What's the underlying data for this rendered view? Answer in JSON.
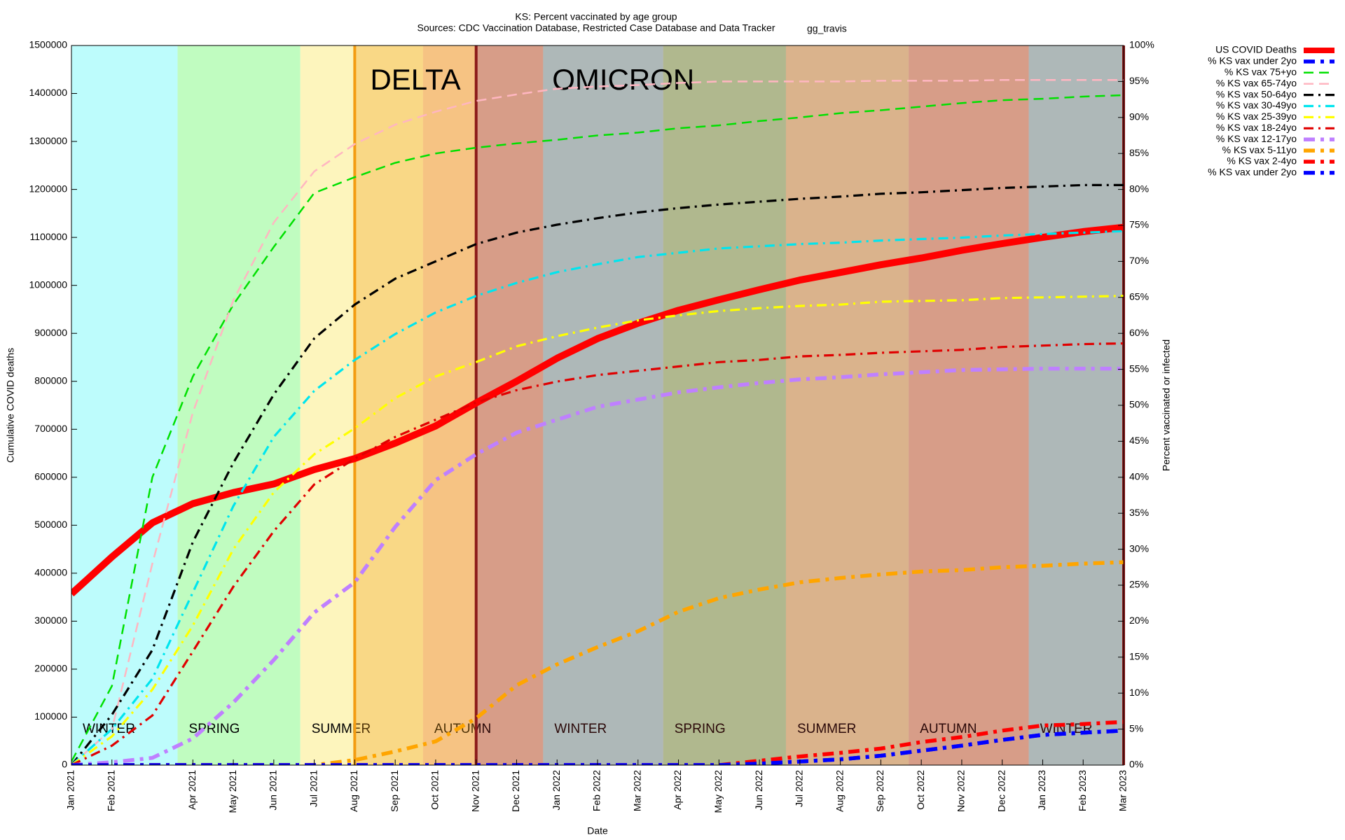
{
  "chart_data": {
    "type": "line",
    "title": "KS: Percent vaccinated by age group",
    "subtitle": "Sources: CDC Vaccination Database, Restricted Case Database and Data Tracker",
    "credit": "gg_travis",
    "x_label": "Date",
    "y_label": "Cumulative COVID deaths",
    "y2_label": "Percent vaccinated or infected",
    "xlim": [
      "2021-01",
      "2023-03"
    ],
    "xticks": [
      {
        "value": "2021-01",
        "label": "Jan 2021"
      },
      {
        "value": "2021-02",
        "label": "Feb 2021"
      },
      {
        "value": "2021-04",
        "label": "Apr 2021"
      },
      {
        "value": "2021-05",
        "label": "May 2021"
      },
      {
        "value": "2021-06",
        "label": "Jun 2021"
      },
      {
        "value": "2021-07",
        "label": "Jul 2021"
      },
      {
        "value": "2021-08",
        "label": "Aug 2021"
      },
      {
        "value": "2021-09",
        "label": "Sep 2021"
      },
      {
        "value": "2021-10",
        "label": "Oct 2021"
      },
      {
        "value": "2021-11",
        "label": "Nov 2021"
      },
      {
        "value": "2021-12",
        "label": "Dec 2021"
      },
      {
        "value": "2022-01",
        "label": "Jan 2022"
      },
      {
        "value": "2022-02",
        "label": "Feb 2022"
      },
      {
        "value": "2022-03",
        "label": "Mar 2022"
      },
      {
        "value": "2022-04",
        "label": "Apr 2022"
      },
      {
        "value": "2022-05",
        "label": "May 2022"
      },
      {
        "value": "2022-06",
        "label": "Jun 2022"
      },
      {
        "value": "2022-07",
        "label": "Jul 2022"
      },
      {
        "value": "2022-08",
        "label": "Aug 2022"
      },
      {
        "value": "2022-09",
        "label": "Sep 2022"
      },
      {
        "value": "2022-10",
        "label": "Oct 2022"
      },
      {
        "value": "2022-11",
        "label": "Nov 2022"
      },
      {
        "value": "2022-12",
        "label": "Dec 2022"
      },
      {
        "value": "2023-01",
        "label": "Jan 2023"
      },
      {
        "value": "2023-02",
        "label": "Feb 2023"
      },
      {
        "value": "2023-03",
        "label": "Mar 2023"
      }
    ],
    "ylim": [
      0,
      1500000
    ],
    "yticks": [
      0,
      100000,
      200000,
      300000,
      400000,
      500000,
      600000,
      700000,
      800000,
      900000,
      1000000,
      1100000,
      1200000,
      1300000,
      1400000,
      1500000
    ],
    "y2lim": [
      0,
      100
    ],
    "y2ticks": [
      {
        "value": 0,
        "label": "0%"
      },
      {
        "value": 5,
        "label": "5%"
      },
      {
        "value": 10,
        "label": "10%"
      },
      {
        "value": 15,
        "label": "15%"
      },
      {
        "value": 20,
        "label": "20%"
      },
      {
        "value": 25,
        "label": "25%"
      },
      {
        "value": 30,
        "label": "30%"
      },
      {
        "value": 35,
        "label": "35%"
      },
      {
        "value": 40,
        "label": "40%"
      },
      {
        "value": 45,
        "label": "45%"
      },
      {
        "value": 50,
        "label": "50%"
      },
      {
        "value": 55,
        "label": "55%"
      },
      {
        "value": 60,
        "label": "60%"
      },
      {
        "value": 65,
        "label": "65%"
      },
      {
        "value": 70,
        "label": "70%"
      },
      {
        "value": 75,
        "label": "75%"
      },
      {
        "value": 80,
        "label": "80%"
      },
      {
        "value": 85,
        "label": "85%"
      },
      {
        "value": 90,
        "label": "90%"
      },
      {
        "value": 95,
        "label": "95%"
      },
      {
        "value": 100,
        "label": "100%"
      }
    ],
    "grid": false,
    "legend": "outside-right-top",
    "seasons": [
      {
        "label": "WINTER",
        "start": "2021-01",
        "end": "2021-03-20",
        "color": "#bdfcfc"
      },
      {
        "label": "SPRING",
        "start": "2021-03-20",
        "end": "2021-06-21",
        "color": "#c0fcc0"
      },
      {
        "label": "SUMMER",
        "start": "2021-06-21",
        "end": "2021-09-22",
        "color": "#fdf5bd"
      },
      {
        "label": "AUTUMN",
        "start": "2021-09-22",
        "end": "2021-12-21",
        "color": "#f8d6b8"
      },
      {
        "label": "WINTER",
        "start": "2021-12-21",
        "end": "2022-03-20",
        "color": "#bdfcfc"
      },
      {
        "label": "SPRING",
        "start": "2022-03-20",
        "end": "2022-06-21",
        "color": "#c0fcc0"
      },
      {
        "label": "SUMMER",
        "start": "2022-06-21",
        "end": "2022-09-22",
        "color": "#fdf5bd"
      },
      {
        "label": "AUTUMN",
        "start": "2022-09-22",
        "end": "2022-12-21",
        "color": "#f8d6b8"
      },
      {
        "label": "WINTER",
        "start": "2022-12-21",
        "end": "2023-03",
        "color": "#bdfcfc"
      }
    ],
    "periods": [
      {
        "label": "DELTA",
        "start": "2021-08",
        "end": "2021-11",
        "color": "#f39c12"
      },
      {
        "label": "OMICRON",
        "start": "2021-11",
        "end": "2023-03",
        "color": "#8b1a1a"
      }
    ],
    "x": [
      "2021-01",
      "2021-02",
      "2021-03",
      "2021-04",
      "2021-05",
      "2021-06",
      "2021-07",
      "2021-08",
      "2021-09",
      "2021-10",
      "2021-11",
      "2021-12",
      "2022-01",
      "2022-02",
      "2022-03",
      "2022-04",
      "2022-05",
      "2022-06",
      "2022-07",
      "2022-08",
      "2022-09",
      "2022-10",
      "2022-11",
      "2022-12",
      "2023-01",
      "2023-02",
      "2023-03"
    ],
    "series": [
      {
        "name": "US COVID Deaths",
        "color": "#ff0000",
        "style": "solid-thick",
        "axis": "y",
        "values": [
          357000,
          434000,
          505000,
          545000,
          568000,
          586000,
          616000,
          639000,
          671000,
          707000,
          755000,
          800000,
          848000,
          889000,
          921000,
          948000,
          970000,
          991000,
          1011000,
          1027000,
          1043000,
          1057000,
          1073000,
          1087000,
          1100000,
          1112000,
          1121000
        ]
      },
      {
        "name": "% KS vax under 2yo",
        "color": "#0000ff",
        "style": "dash-dot-thick",
        "axis": "y2",
        "values": [
          0,
          0,
          0,
          0,
          0,
          0,
          0,
          0,
          0,
          0,
          0,
          0,
          0,
          0,
          0,
          0,
          0,
          0.2,
          0.5,
          0.8,
          1.3,
          2,
          2.7,
          3.5,
          4.2,
          4.5,
          4.8
        ]
      },
      {
        "name": "% KS vax 75+yo",
        "color": "#00e000",
        "style": "dashed",
        "axis": "y2",
        "values": [
          0.5,
          11,
          40,
          54,
          64,
          72,
          79.5,
          81.7,
          83.7,
          85,
          85.8,
          86.4,
          86.9,
          87.5,
          87.9,
          88.5,
          88.9,
          89.5,
          90,
          90.6,
          91,
          91.5,
          92,
          92.4,
          92.6,
          92.9,
          93.1
        ]
      },
      {
        "name": "% KS vax 65-74yo",
        "color": "#ffb6c1",
        "style": "dashed",
        "axis": "y2",
        "values": [
          0,
          5,
          28,
          49,
          64.6,
          75.4,
          82.5,
          86.3,
          89,
          90.8,
          92.3,
          93.2,
          94,
          94.3,
          94.5,
          94.8,
          95,
          95,
          95,
          95,
          95.1,
          95.1,
          95.1,
          95.2,
          95.2,
          95.2,
          95.2
        ]
      },
      {
        "name": "% KS vax 50-64yo",
        "color": "#000000",
        "style": "dash-dot",
        "axis": "y2",
        "values": [
          0,
          7,
          16,
          31,
          42,
          51.5,
          59.3,
          64,
          67.6,
          70,
          72.4,
          74,
          75.1,
          76,
          76.8,
          77.4,
          77.9,
          78.3,
          78.7,
          79,
          79.4,
          79.6,
          79.9,
          80.2,
          80.4,
          80.6,
          80.6
        ]
      },
      {
        "name": "% KS vax 30-49yo",
        "color": "#00e5ee",
        "style": "dash-dot",
        "axis": "y2",
        "values": [
          0,
          5,
          12,
          24,
          36,
          45.6,
          52,
          56.3,
          59.9,
          62.9,
          65.2,
          67,
          68.5,
          69.6,
          70.6,
          71.2,
          71.8,
          72.1,
          72.4,
          72.6,
          72.9,
          73.1,
          73.3,
          73.6,
          73.8,
          74,
          74.2
        ]
      },
      {
        "name": "% KS vax 25-39yo",
        "color": "#ffff00",
        "style": "dash-dot",
        "axis": "y2",
        "values": [
          0,
          4,
          10.5,
          19.4,
          30,
          37.9,
          43.2,
          46.8,
          51,
          54,
          56,
          58.2,
          59.6,
          60.8,
          61.8,
          62.5,
          63.1,
          63.5,
          63.8,
          64,
          64.4,
          64.5,
          64.6,
          64.9,
          65,
          65.1,
          65.2
        ]
      },
      {
        "name": "% KS vax 18-24yo",
        "color": "#e00000",
        "style": "dash-dot",
        "axis": "y2",
        "values": [
          0,
          2.7,
          6.9,
          15.8,
          24.8,
          32.5,
          39,
          42.6,
          45.6,
          48,
          50.4,
          52.1,
          53.3,
          54.2,
          54.8,
          55.4,
          56,
          56.3,
          56.8,
          57,
          57.3,
          57.5,
          57.7,
          58.1,
          58.3,
          58.5,
          58.6
        ]
      },
      {
        "name": "% KS vax 12-17yo",
        "color": "#bf80ff",
        "style": "dash-dot-thick",
        "axis": "y2",
        "values": [
          0,
          0.4,
          1,
          3.7,
          8.7,
          14.6,
          21.2,
          25.4,
          33.1,
          39.6,
          43.2,
          46.2,
          48,
          49.8,
          50.8,
          51.8,
          52.5,
          53.1,
          53.6,
          53.9,
          54.3,
          54.6,
          54.9,
          55,
          55.1,
          55.1,
          55.1
        ]
      },
      {
        "name": "% KS vax 5-11yo",
        "color": "#ffa500",
        "style": "dash-dot-thick",
        "axis": "y2",
        "values": [
          0,
          0,
          0,
          0,
          0,
          0,
          0,
          0.7,
          1.9,
          3.3,
          6.5,
          11.1,
          14,
          16.4,
          18.6,
          21.3,
          23.2,
          24.4,
          25.4,
          26,
          26.5,
          26.9,
          27.1,
          27.5,
          27.7,
          28,
          28.2
        ]
      },
      {
        "name": "% KS vax 2-4yo",
        "color": "#ff0000",
        "style": "dash-dot-thick",
        "axis": "y2",
        "values": [
          0,
          0,
          0,
          0,
          0,
          0,
          0,
          0,
          0,
          0,
          0,
          0,
          0,
          0,
          0,
          0,
          0,
          0.6,
          1.2,
          1.7,
          2.3,
          3.2,
          3.9,
          4.8,
          5.5,
          5.7,
          6
        ]
      },
      {
        "name": "% KS vax under 2yo",
        "color": "#0000ff",
        "style": "dash-dot-thick",
        "axis": "y2",
        "values": [
          0,
          0,
          0,
          0,
          0,
          0,
          0,
          0,
          0,
          0,
          0,
          0,
          0,
          0,
          0,
          0,
          0,
          0.2,
          0.5,
          0.8,
          1.3,
          2,
          2.7,
          3.5,
          4.2,
          4.5,
          4.8
        ]
      }
    ]
  }
}
